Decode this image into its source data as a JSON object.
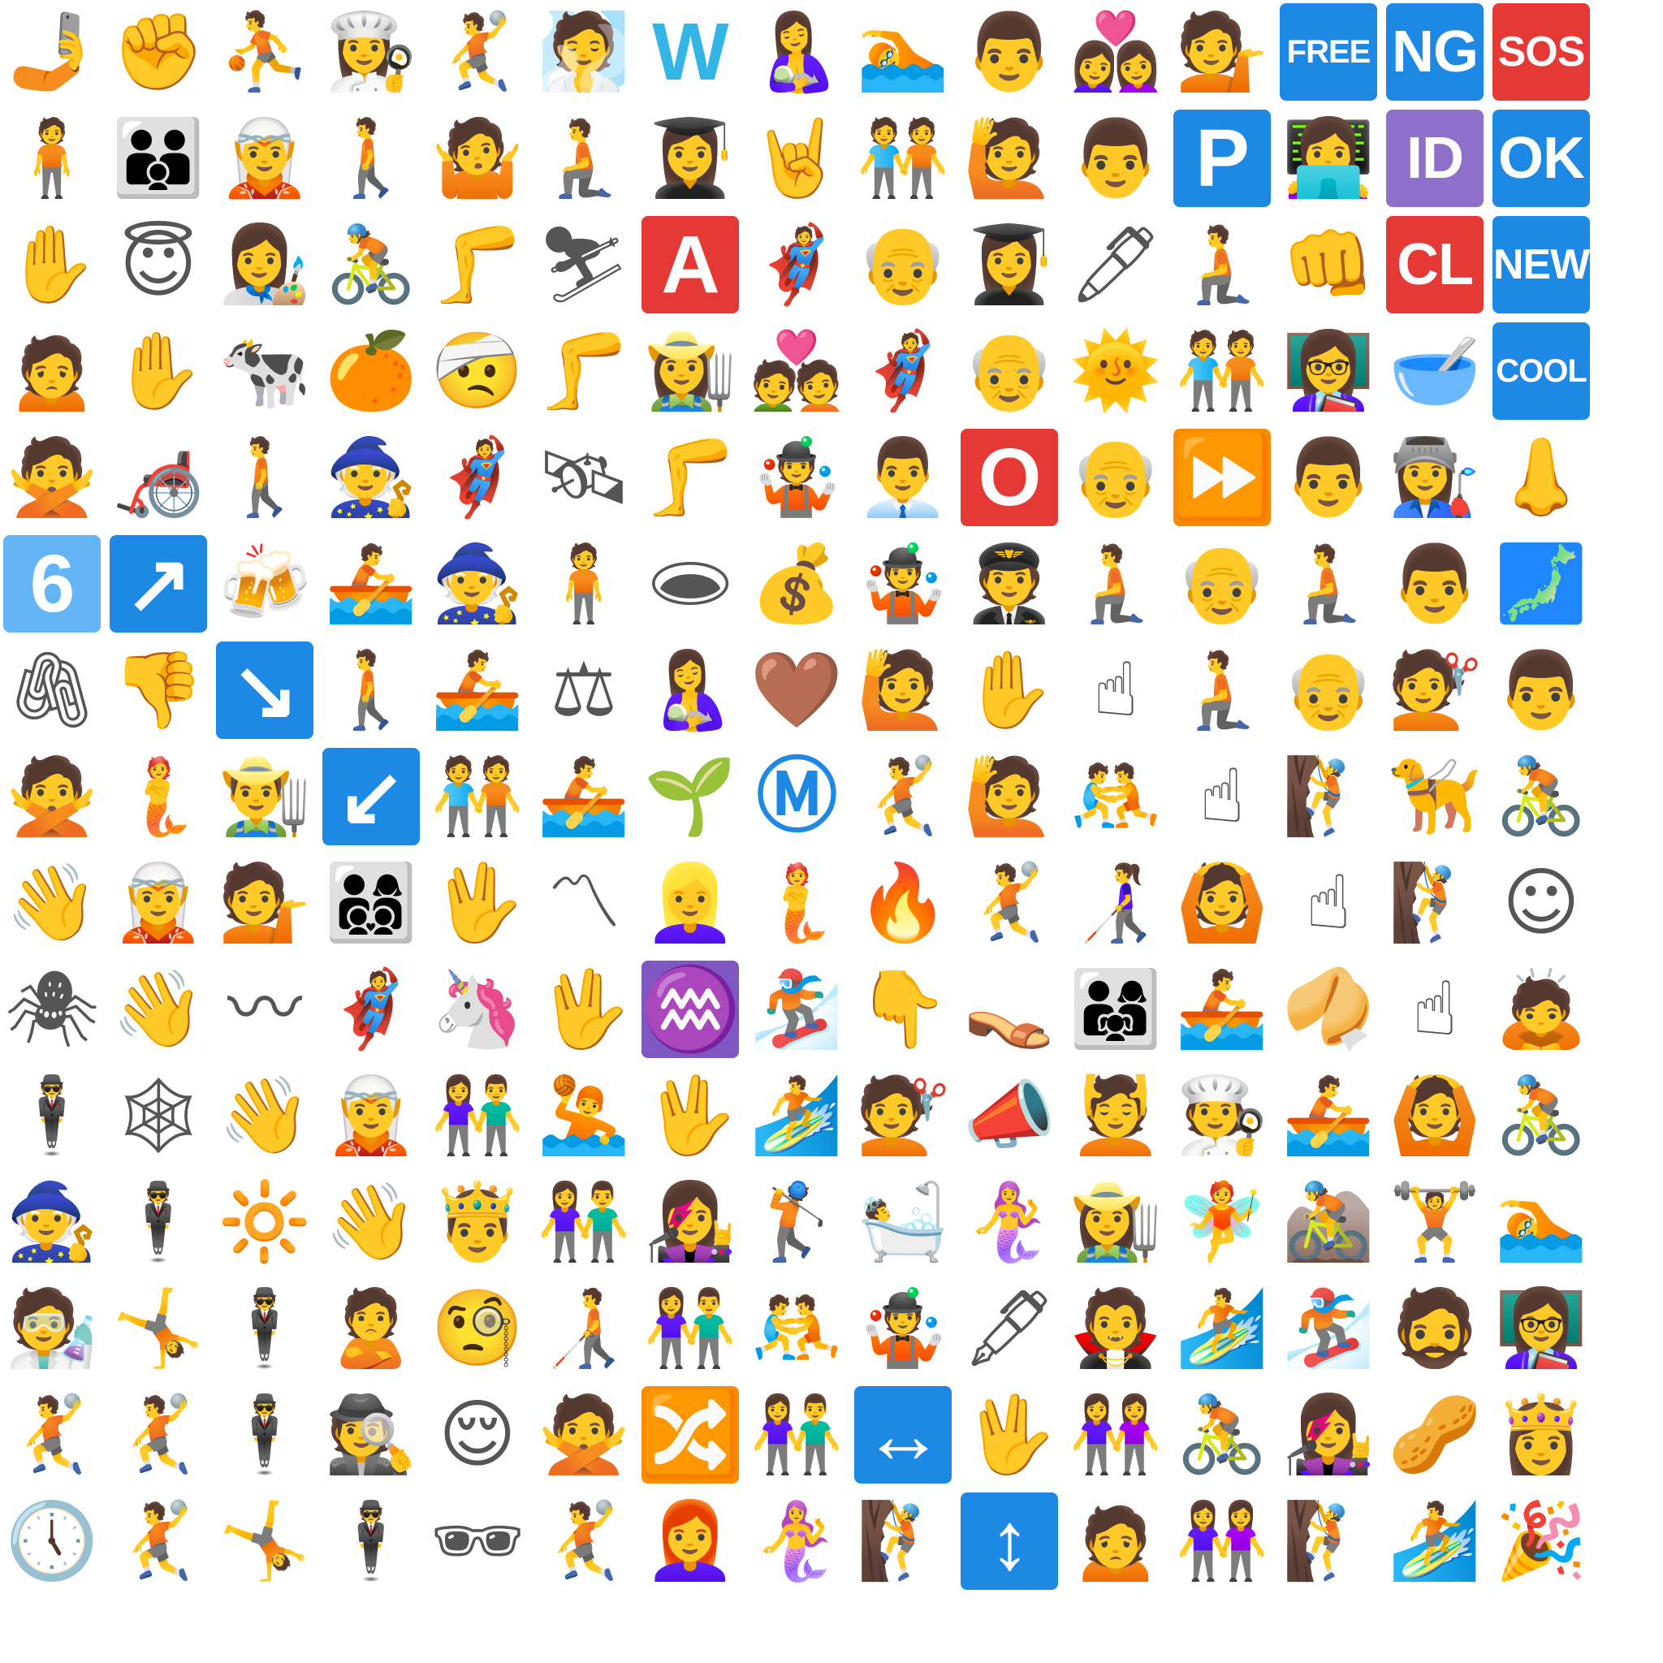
{
  "tiles": [
    {
      "name": "selfie-icon",
      "glyph": "🤳"
    },
    {
      "name": "raised-fist-icon",
      "glyph": "✊"
    },
    {
      "name": "person-bouncing-ball-icon",
      "glyph": "⛹"
    },
    {
      "name": "woman-cook-icon",
      "glyph": "👩‍🍳"
    },
    {
      "name": "woman-playing-handball-icon",
      "glyph": "🤾"
    },
    {
      "name": "man-in-steamy-room-icon",
      "glyph": "🧖"
    },
    {
      "name": "letter-w-icon",
      "text": "W",
      "bg": "#ffffff",
      "fg": "#33b5e5"
    },
    {
      "name": "breast-feeding-icon",
      "glyph": "🤱"
    },
    {
      "name": "person-swimming-icon",
      "glyph": "🏊"
    },
    {
      "name": "man-face-icon",
      "glyph": "👨"
    },
    {
      "name": "couple-with-heart-women-icon",
      "glyph": "👩‍❤‍👩"
    },
    {
      "name": "person-tipping-hand-icon",
      "glyph": "💁"
    },
    {
      "name": "free-button-icon",
      "text": "FREE",
      "bg": "#1e88e5"
    },
    {
      "name": "ng-button-icon",
      "text": "NG",
      "bg": "#1e88e5"
    },
    {
      "name": "sos-button-icon",
      "text": "SOS",
      "bg": "#e53935"
    },
    {
      "name": "woman-standing-icon",
      "glyph": "🧍"
    },
    {
      "name": "family-man-man-boy-icon",
      "glyph": "👨‍👨‍👦"
    },
    {
      "name": "elf-icon",
      "glyph": "🧝"
    },
    {
      "name": "person-walking-icon",
      "glyph": "🚶"
    },
    {
      "name": "woman-shrugging-icon",
      "glyph": "🤷"
    },
    {
      "name": "person-kneeling-icon",
      "glyph": "🧎"
    },
    {
      "name": "woman-student-icon",
      "glyph": "👩‍🎓"
    },
    {
      "name": "sign-of-horns-icon",
      "glyph": "🤘"
    },
    {
      "name": "people-holding-hands-icon",
      "glyph": "🧑‍🤝‍🧑"
    },
    {
      "name": "person-raising-hand-icon",
      "glyph": "🙋"
    },
    {
      "name": "man-face-dark-icon",
      "glyph": "👨"
    },
    {
      "name": "p-button-icon",
      "text": "P",
      "bg": "#1e88e5"
    },
    {
      "name": "technologist-icon",
      "glyph": "👩‍💻"
    },
    {
      "name": "id-button-icon",
      "text": "ID",
      "bg": "#8e6fc9"
    },
    {
      "name": "ok-button-icon",
      "text": "OK",
      "bg": "#1e88e5"
    },
    {
      "name": "raised-hand-icon",
      "glyph": "✋"
    },
    {
      "name": "smiling-face-with-halo-icon",
      "glyph": "😇"
    },
    {
      "name": "woman-artist-icon",
      "glyph": "👩‍🎨"
    },
    {
      "name": "person-biking-icon",
      "glyph": "🚴"
    },
    {
      "name": "leg-icon",
      "glyph": "🦵"
    },
    {
      "name": "skier-icon",
      "glyph": "⛷"
    },
    {
      "name": "a-button-icon",
      "text": "A",
      "bg": "#e53935"
    },
    {
      "name": "superhero-icon",
      "glyph": "🦸"
    },
    {
      "name": "old-man-icon",
      "glyph": "👴"
    },
    {
      "name": "woman-student-medium-icon",
      "glyph": "👩‍🎓"
    },
    {
      "name": "pen-icon",
      "glyph": "🖊"
    },
    {
      "name": "person-kneeling-2-icon",
      "glyph": "🧎"
    },
    {
      "name": "oncoming-fist-icon",
      "glyph": "👊"
    },
    {
      "name": "cl-button-icon",
      "text": "CL",
      "bg": "#e53935"
    },
    {
      "name": "new-button-icon",
      "text": "NEW",
      "bg": "#1e88e5"
    },
    {
      "name": "man-frowning-icon",
      "glyph": "🙍"
    },
    {
      "name": "raised-hand-dark-icon",
      "glyph": "✋"
    },
    {
      "name": "cow-icon",
      "glyph": "🐄"
    },
    {
      "name": "tangerine-icon",
      "glyph": "🍊"
    },
    {
      "name": "face-with-head-bandage-icon",
      "glyph": "🤕"
    },
    {
      "name": "leg-medium-icon",
      "glyph": "🦵"
    },
    {
      "name": "woman-farmer-icon",
      "glyph": "👩‍🌾"
    },
    {
      "name": "couple-with-heart-icon",
      "glyph": "💑"
    },
    {
      "name": "superhero-2-icon",
      "glyph": "🦸"
    },
    {
      "name": "old-man-medium-icon",
      "glyph": "👴"
    },
    {
      "name": "sun-with-face-icon",
      "glyph": "🌞"
    },
    {
      "name": "people-holding-hands-2-icon",
      "glyph": "🧑‍🤝‍🧑"
    },
    {
      "name": "woman-teacher-icon",
      "glyph": "👩‍🏫"
    },
    {
      "name": "bowl-with-spoon-icon",
      "glyph": "🥣"
    },
    {
      "name": "cool-button-icon",
      "text": "COOL",
      "bg": "#1e88e5"
    },
    {
      "name": "person-gesturing-no-icon",
      "glyph": "🙅"
    },
    {
      "name": "manual-wheelchair-icon",
      "glyph": "🦽"
    },
    {
      "name": "woman-walking-icon",
      "glyph": "🚶"
    },
    {
      "name": "mage-icon",
      "glyph": "🧙"
    },
    {
      "name": "superhero-3-icon",
      "glyph": "🦸"
    },
    {
      "name": "satellite-icon",
      "glyph": "🛰"
    },
    {
      "name": "leg-dark-icon",
      "glyph": "🦵"
    },
    {
      "name": "person-juggling-icon",
      "glyph": "🤹"
    },
    {
      "name": "man-office-worker-icon",
      "glyph": "👨‍💼"
    },
    {
      "name": "o-button-icon",
      "text": "O",
      "bg": "#e53935"
    },
    {
      "name": "old-man-2-icon",
      "glyph": "👴"
    },
    {
      "name": "fast-forward-icon",
      "text": "⏩",
      "bg": "#fb8c00"
    },
    {
      "name": "man-face-light-icon",
      "glyph": "👨"
    },
    {
      "name": "woman-factory-worker-icon",
      "glyph": "👩‍🏭"
    },
    {
      "name": "nose-icon",
      "glyph": "👃"
    },
    {
      "name": "keycap-6-icon",
      "text": "6",
      "bg": "#64b5f6"
    },
    {
      "name": "up-right-arrow-icon",
      "text": "↗",
      "bg": "#1e88e5"
    },
    {
      "name": "clinking-beer-mugs-icon",
      "glyph": "🍻"
    },
    {
      "name": "person-rowing-boat-icon",
      "glyph": "🚣"
    },
    {
      "name": "mage-2-icon",
      "glyph": "🧙"
    },
    {
      "name": "person-standing-icon",
      "glyph": "🧍"
    },
    {
      "name": "hole-icon",
      "glyph": "🕳"
    },
    {
      "name": "money-bag-icon",
      "glyph": "💰"
    },
    {
      "name": "person-juggling-2-icon",
      "glyph": "🤹"
    },
    {
      "name": "pilot-icon",
      "glyph": "🧑‍✈"
    },
    {
      "name": "woman-kneeling-icon",
      "glyph": "🧎"
    },
    {
      "name": "old-man-3-icon",
      "glyph": "👴"
    },
    {
      "name": "person-kneeling-3-icon",
      "glyph": "🧎"
    },
    {
      "name": "man-face-medium-light-icon",
      "glyph": "👨"
    },
    {
      "name": "map-of-japan-icon",
      "glyph": "🗾"
    },
    {
      "name": "linked-paperclips-icon",
      "glyph": "🖇"
    },
    {
      "name": "thumbs-down-icon",
      "glyph": "👎"
    },
    {
      "name": "down-right-arrow-icon",
      "text": "↘",
      "bg": "#1e88e5"
    },
    {
      "name": "person-walking-2-icon",
      "glyph": "🚶"
    },
    {
      "name": "person-rowing-boat-2-icon",
      "glyph": "🚣"
    },
    {
      "name": "balance-scale-icon",
      "glyph": "⚖"
    },
    {
      "name": "breast-feeding-2-icon",
      "glyph": "🤱"
    },
    {
      "name": "brown-heart-icon",
      "glyph": "🤎"
    },
    {
      "name": "woman-raising-hand-icon",
      "glyph": "🙋"
    },
    {
      "name": "raised-hand-light-icon",
      "glyph": "✋"
    },
    {
      "name": "index-pointing-up-icon",
      "glyph": "☝"
    },
    {
      "name": "person-kneeling-4-icon",
      "glyph": "🧎"
    },
    {
      "name": "old-man-dark-icon",
      "glyph": "👴"
    },
    {
      "name": "woman-hairdresser-icon",
      "glyph": "💇"
    },
    {
      "name": "man-face-medium-icon",
      "glyph": "👨"
    },
    {
      "name": "man-gesturing-no-icon",
      "glyph": "🙅"
    },
    {
      "name": "merperson-icon",
      "glyph": "🧜"
    },
    {
      "name": "man-farmer-icon",
      "glyph": "👨‍🌾"
    },
    {
      "name": "down-left-arrow-icon",
      "text": "↙",
      "bg": "#1e88e5"
    },
    {
      "name": "people-holding-hands-3-icon",
      "glyph": "🧑‍🤝‍🧑"
    },
    {
      "name": "person-rowing-boat-3-icon",
      "glyph": "🚣"
    },
    {
      "name": "seedling-icon",
      "glyph": "🌱"
    },
    {
      "name": "circled-m-icon",
      "text": "Ⓜ",
      "bg": "#ffffff",
      "fg": "#1e88e5"
    },
    {
      "name": "woman-playing-handball-2-icon",
      "glyph": "🤾"
    },
    {
      "name": "man-raising-hand-icon",
      "glyph": "🙋"
    },
    {
      "name": "people-wrestling-icon",
      "glyph": "🤼"
    },
    {
      "name": "index-pointing-up-2-icon",
      "glyph": "☝"
    },
    {
      "name": "person-climbing-icon",
      "glyph": "🧗"
    },
    {
      "name": "guide-dog-icon",
      "glyph": "🦮"
    },
    {
      "name": "person-biking-2-icon",
      "glyph": "🚴"
    },
    {
      "name": "waving-hand-icon",
      "glyph": "👋"
    },
    {
      "name": "elf-dark-icon",
      "glyph": "🧝"
    },
    {
      "name": "person-tipping-hand-2-icon",
      "glyph": "💁"
    },
    {
      "name": "family-icon",
      "glyph": "👨‍👩‍👦‍👦"
    },
    {
      "name": "vulcan-salute-icon",
      "glyph": "🖖"
    },
    {
      "name": "part-alternation-mark-icon",
      "glyph": "〽"
    },
    {
      "name": "woman-blond-hair-icon",
      "glyph": "👱‍♀"
    },
    {
      "name": "merperson-2-icon",
      "glyph": "🧜"
    },
    {
      "name": "fire-icon",
      "glyph": "🔥"
    },
    {
      "name": "person-playing-handball-icon",
      "glyph": "🤾"
    },
    {
      "name": "woman-with-white-cane-icon",
      "glyph": "👩‍🦯"
    },
    {
      "name": "woman-gesturing-ok-icon",
      "glyph": "🙆"
    },
    {
      "name": "index-pointing-up-3-icon",
      "glyph": "☝"
    },
    {
      "name": "person-climbing-2-icon",
      "glyph": "🧗"
    },
    {
      "name": "smiling-face-icon",
      "glyph": "☺"
    },
    {
      "name": "spider-icon",
      "glyph": "🕷"
    },
    {
      "name": "waving-hand-2-icon",
      "glyph": "👋"
    },
    {
      "name": "wavy-dash-icon",
      "glyph": "〰"
    },
    {
      "name": "superhero-4-icon",
      "glyph": "🦸"
    },
    {
      "name": "unicorn-icon",
      "glyph": "🦄"
    },
    {
      "name": "vulcan-salute-2-icon",
      "glyph": "🖖"
    },
    {
      "name": "aquarius-icon",
      "text": "♒",
      "bg": "#7e57c2"
    },
    {
      "name": "snowboarder-icon",
      "glyph": "🏂"
    },
    {
      "name": "backhand-index-pointing-down-icon",
      "glyph": "👇"
    },
    {
      "name": "high-heeled-shoe-icon",
      "glyph": "👡"
    },
    {
      "name": "family-2-icon",
      "glyph": "👨‍👩‍👧"
    },
    {
      "name": "woman-rowing-boat-icon",
      "glyph": "🚣"
    },
    {
      "name": "fortune-cookie-icon",
      "glyph": "🥠"
    },
    {
      "name": "index-pointing-up-4-icon",
      "glyph": "☝"
    },
    {
      "name": "woman-bowing-icon",
      "glyph": "🙇"
    },
    {
      "name": "person-in-suit-levitating-icon",
      "glyph": "🕴"
    },
    {
      "name": "spider-web-icon",
      "glyph": "🕸"
    },
    {
      "name": "waving-hand-3-icon",
      "glyph": "👋"
    },
    {
      "name": "elf-2-icon",
      "glyph": "🧝"
    },
    {
      "name": "woman-and-man-holding-hands-icon",
      "glyph": "👫"
    },
    {
      "name": "person-playing-water-polo-icon",
      "glyph": "🤽"
    },
    {
      "name": "vulcan-salute-3-icon",
      "glyph": "🖖"
    },
    {
      "name": "woman-surfing-icon",
      "glyph": "🏄"
    },
    {
      "name": "man-hairdresser-icon",
      "glyph": "💇"
    },
    {
      "name": "megaphone-icon",
      "glyph": "📣"
    },
    {
      "name": "man-getting-massage-icon",
      "glyph": "💆"
    },
    {
      "name": "cook-icon",
      "glyph": "🧑‍🍳"
    },
    {
      "name": "person-rowing-boat-4-icon",
      "glyph": "🚣"
    },
    {
      "name": "man-gesturing-ok-icon",
      "glyph": "🙆"
    },
    {
      "name": "person-biking-3-icon",
      "glyph": "🚴"
    },
    {
      "name": "mage-3-icon",
      "glyph": "🧙"
    },
    {
      "name": "person-in-suit-levitating-2-icon",
      "glyph": "🕴"
    },
    {
      "name": "sun-icon",
      "glyph": "🔆"
    },
    {
      "name": "waving-hand-4-icon",
      "glyph": "👋"
    },
    {
      "name": "prince-icon",
      "glyph": "🤴"
    },
    {
      "name": "woman-and-man-holding-hands-2-icon",
      "glyph": "👫"
    },
    {
      "name": "woman-singer-icon",
      "glyph": "👩‍🎤"
    },
    {
      "name": "person-golfing-icon",
      "glyph": "🏌"
    },
    {
      "name": "person-taking-bath-icon",
      "glyph": "🛀"
    },
    {
      "name": "mermaid-icon",
      "glyph": "🧜‍♀"
    },
    {
      "name": "woman-farmer-2-icon",
      "glyph": "👩‍🌾"
    },
    {
      "name": "fairy-icon",
      "glyph": "🧚"
    },
    {
      "name": "person-mountain-biking-icon",
      "glyph": "🚵"
    },
    {
      "name": "person-lifting-weights-icon",
      "glyph": "🏋"
    },
    {
      "name": "person-swimming-2-icon",
      "glyph": "🏊"
    },
    {
      "name": "scientist-icon",
      "glyph": "🧑‍🔬"
    },
    {
      "name": "person-cartwheeling-icon",
      "glyph": "🤸"
    },
    {
      "name": "person-in-suit-levitating-3-icon",
      "glyph": "🕴"
    },
    {
      "name": "person-pouting-icon",
      "glyph": "🙎"
    },
    {
      "name": "face-with-monocle-icon",
      "glyph": "🧐"
    },
    {
      "name": "person-with-white-cane-icon",
      "glyph": "🧑‍🦯"
    },
    {
      "name": "woman-and-man-holding-hands-3-icon",
      "glyph": "👫"
    },
    {
      "name": "people-wrestling-2-icon",
      "glyph": "🤼"
    },
    {
      "name": "woman-juggling-icon",
      "glyph": "🤹"
    },
    {
      "name": "fountain-pen-icon",
      "glyph": "🖋"
    },
    {
      "name": "vampire-icon",
      "glyph": "🧛"
    },
    {
      "name": "person-surfing-icon",
      "glyph": "🏄"
    },
    {
      "name": "snowboarder-2-icon",
      "glyph": "🏂"
    },
    {
      "name": "man-beard-icon",
      "glyph": "🧔"
    },
    {
      "name": "woman-teacher-2-icon",
      "glyph": "👩‍🏫"
    },
    {
      "name": "person-playing-handball-2-icon",
      "glyph": "🤾"
    },
    {
      "name": "person-playing-handball-3-icon",
      "glyph": "🤾"
    },
    {
      "name": "person-in-suit-levitating-4-icon",
      "glyph": "🕴"
    },
    {
      "name": "detective-icon",
      "glyph": "🕵"
    },
    {
      "name": "relieved-face-icon",
      "glyph": "😌"
    },
    {
      "name": "woman-gesturing-no-icon",
      "glyph": "🙅"
    },
    {
      "name": "shuffle-tracks-button-icon",
      "text": "🔀",
      "bg": "#fb8c00"
    },
    {
      "name": "woman-and-man-holding-hands-4-icon",
      "glyph": "👫"
    },
    {
      "name": "left-right-arrow-icon",
      "text": "↔",
      "bg": "#1e88e5"
    },
    {
      "name": "vulcan-salute-4-icon",
      "glyph": "🖖"
    },
    {
      "name": "women-holding-hands-icon",
      "glyph": "👭"
    },
    {
      "name": "person-biking-4-icon",
      "glyph": "🚴"
    },
    {
      "name": "woman-singer-2-icon",
      "glyph": "👩‍🎤"
    },
    {
      "name": "peanuts-icon",
      "glyph": "🥜"
    },
    {
      "name": "princess-icon",
      "glyph": "👸"
    },
    {
      "name": "five-oclock-icon",
      "glyph": "🕔"
    },
    {
      "name": "person-playing-handball-4-icon",
      "glyph": "🤾"
    },
    {
      "name": "woman-cartwheeling-icon",
      "glyph": "🤸"
    },
    {
      "name": "person-in-suit-levitating-5-icon",
      "glyph": "🕴"
    },
    {
      "name": "sunglasses-icon",
      "glyph": "🕶"
    },
    {
      "name": "woman-playing-handball-3-icon",
      "glyph": "🤾"
    },
    {
      "name": "woman-red-hair-icon",
      "glyph": "👩‍🦰"
    },
    {
      "name": "mermaid-2-icon",
      "glyph": "🧜‍♀"
    },
    {
      "name": "person-climbing-3-icon",
      "glyph": "🧗"
    },
    {
      "name": "up-down-arrow-icon",
      "text": "↕",
      "bg": "#1e88e5"
    },
    {
      "name": "woman-frowning-icon",
      "glyph": "🙍"
    },
    {
      "name": "women-holding-hands-2-icon",
      "glyph": "👭"
    },
    {
      "name": "person-climbing-4-icon",
      "glyph": "🧗"
    },
    {
      "name": "man-surfing-icon",
      "glyph": "🏄"
    },
    {
      "name": "party-popper-icon",
      "glyph": "🎉"
    }
  ]
}
